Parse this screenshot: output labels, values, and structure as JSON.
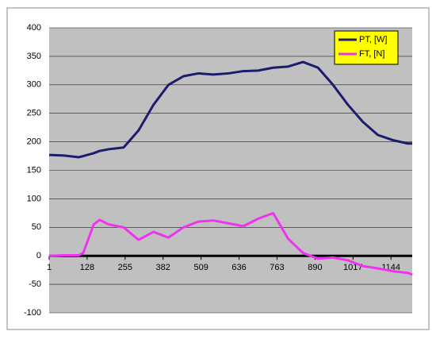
{
  "chart_data": {
    "type": "line",
    "x": [
      1,
      50,
      100,
      115,
      150,
      170,
      200,
      250,
      300,
      350,
      400,
      450,
      500,
      550,
      600,
      650,
      700,
      750,
      800,
      850,
      900,
      950,
      1000,
      1050,
      1100,
      1150,
      1200,
      1215
    ],
    "series": [
      {
        "name": "PT, [W]",
        "color": "#1c1c6e",
        "values": [
          177,
          176,
          173,
          175,
          180,
          184,
          187,
          190,
          220,
          265,
          300,
          315,
          320,
          318,
          320,
          324,
          325,
          330,
          332,
          340,
          330,
          300,
          265,
          235,
          212,
          203,
          197,
          197
        ]
      },
      {
        "name": "FT, [N]",
        "color": "#ee33ee",
        "values": [
          0,
          1,
          1,
          5,
          55,
          63,
          55,
          50,
          28,
          42,
          32,
          50,
          60,
          62,
          57,
          52,
          65,
          75,
          30,
          5,
          -5,
          -3,
          -8,
          -18,
          -22,
          -27,
          -30,
          -33
        ]
      }
    ],
    "xlim": [
      1,
      1215
    ],
    "xticks": [
      1,
      128,
      255,
      382,
      509,
      636,
      763,
      890,
      1017,
      1144
    ],
    "ylim": [
      -100,
      400
    ],
    "yticks": [
      -100,
      -50,
      0,
      50,
      100,
      150,
      200,
      250,
      300,
      350,
      400
    ],
    "grid": true,
    "legend": "top-right"
  }
}
